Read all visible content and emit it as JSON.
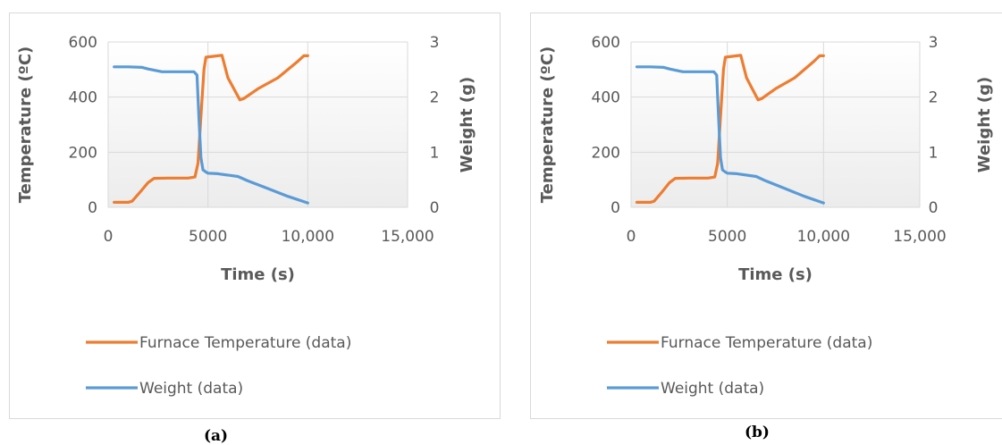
{
  "colors": {
    "temperature": "#ED7D31",
    "weight": "#5B9BD5",
    "grid": "#d9d9d9",
    "text": "#595959"
  },
  "chart_data": [
    {
      "type": "line",
      "caption": "(a)",
      "xlabel": "Time  (s)",
      "ylabel": "Temperature (ºC)",
      "y2label": "Weight (g)",
      "xlim": [
        0,
        15000
      ],
      "ylim": [
        0,
        600
      ],
      "y2lim": [
        0,
        3
      ],
      "xticks": [
        "0",
        "5000",
        "10,000",
        "15,000"
      ],
      "yticks": [
        "0",
        "200",
        "400",
        "600"
      ],
      "y2ticks": [
        "0",
        "1",
        "2",
        "3"
      ],
      "legend_position": "bottom",
      "series": [
        {
          "name": "Furnace Temperature (data)",
          "axis": "left",
          "x": [
            300,
            1000,
            1200,
            1600,
            2000,
            2300,
            3000,
            4000,
            4350,
            4500,
            4650,
            4800,
            4900,
            5500,
            5700,
            6000,
            6600,
            6800,
            7500,
            8500,
            9500,
            9800,
            10000
          ],
          "y": [
            18,
            18,
            22,
            55,
            90,
            105,
            106,
            106,
            110,
            160,
            330,
            500,
            545,
            550,
            552,
            470,
            390,
            395,
            430,
            470,
            530,
            550,
            550
          ]
        },
        {
          "name": "Weight (data)",
          "axis": "right",
          "x": [
            300,
            1000,
            1700,
            2000,
            2700,
            3500,
            4300,
            4450,
            4550,
            4650,
            4750,
            4900,
            5000,
            5500,
            6500,
            7000,
            8000,
            9000,
            10000
          ],
          "y": [
            2.55,
            2.55,
            2.54,
            2.51,
            2.46,
            2.46,
            2.46,
            2.4,
            1.6,
            0.9,
            0.68,
            0.64,
            0.62,
            0.61,
            0.56,
            0.48,
            0.34,
            0.2,
            0.08
          ]
        }
      ]
    },
    {
      "type": "line",
      "caption": "(b)",
      "xlabel": "Time  (s)",
      "ylabel": "Temperature (ºC)",
      "y2label": "Weight (g)",
      "xlim": [
        0,
        15000
      ],
      "ylim": [
        0,
        600
      ],
      "y2lim": [
        0,
        3
      ],
      "xticks": [
        "0",
        "5000",
        "10,000",
        "15,000"
      ],
      "yticks": [
        "0",
        "200",
        "400",
        "600"
      ],
      "y2ticks": [
        "0",
        "1",
        "2",
        "3"
      ],
      "legend_position": "bottom",
      "series": [
        {
          "name": "Furnace Temperature  (data)",
          "axis": "left",
          "x": [
            300,
            1000,
            1200,
            1600,
            2000,
            2300,
            3000,
            4000,
            4350,
            4500,
            4650,
            4800,
            4900,
            5500,
            5700,
            6000,
            6600,
            6800,
            7500,
            8500,
            9500,
            9800,
            10000
          ],
          "y": [
            18,
            18,
            22,
            55,
            90,
            105,
            106,
            106,
            110,
            160,
            330,
            500,
            545,
            550,
            552,
            470,
            390,
            395,
            430,
            470,
            530,
            550,
            550
          ]
        },
        {
          "name": "Weight (data)",
          "axis": "right",
          "x": [
            300,
            1000,
            1700,
            2000,
            2700,
            3500,
            4300,
            4450,
            4550,
            4650,
            4750,
            4900,
            5000,
            5500,
            6500,
            7000,
            8000,
            9000,
            10000
          ],
          "y": [
            2.55,
            2.55,
            2.54,
            2.51,
            2.46,
            2.46,
            2.46,
            2.4,
            1.6,
            0.9,
            0.68,
            0.64,
            0.62,
            0.61,
            0.56,
            0.48,
            0.34,
            0.2,
            0.08
          ]
        }
      ]
    }
  ]
}
